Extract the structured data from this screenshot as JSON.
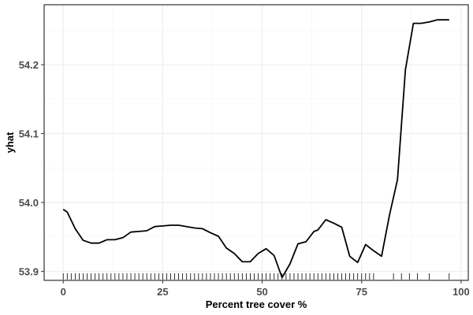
{
  "chart_data": {
    "type": "line",
    "title": "",
    "xlabel": "Percent tree cover %",
    "ylabel": "yhat",
    "xlim": [
      -4.8,
      101.8
    ],
    "ylim": [
      53.887,
      54.287
    ],
    "x_ticks": [
      0,
      25,
      50,
      75,
      100
    ],
    "x_tick_labels": [
      "0",
      "25",
      "50",
      "75",
      "100"
    ],
    "y_ticks": [
      53.9,
      54.0,
      54.1,
      54.2
    ],
    "y_tick_labels": [
      "53.9",
      "54.0",
      "54.1",
      "54.2"
    ],
    "grid": true,
    "series": [
      {
        "x": [
          0,
          1,
          3,
          5,
          7,
          9,
          11,
          13,
          15,
          17,
          19,
          21,
          23,
          25,
          27,
          29,
          31,
          33,
          35,
          37,
          39,
          41,
          43,
          45,
          47,
          49,
          51,
          53,
          55,
          57,
          59,
          61,
          63,
          64,
          66,
          68,
          70,
          72,
          74,
          76,
          78,
          80,
          82,
          84,
          86,
          88,
          90,
          92,
          94,
          96,
          97
        ],
        "y": [
          53.99,
          53.986,
          53.962,
          53.945,
          53.941,
          53.941,
          53.946,
          53.946,
          53.949,
          53.957,
          53.958,
          53.959,
          53.965,
          53.966,
          53.967,
          53.967,
          53.965,
          53.963,
          53.962,
          53.956,
          53.951,
          53.934,
          53.926,
          53.914,
          53.914,
          53.926,
          53.933,
          53.923,
          53.891,
          53.911,
          53.94,
          53.943,
          53.958,
          53.96,
          53.975,
          53.97,
          53.964,
          53.922,
          53.913,
          53.939,
          53.93,
          53.922,
          53.982,
          54.033,
          54.193,
          54.26,
          54.26,
          54.262,
          54.265,
          54.265,
          54.265
        ]
      }
    ],
    "rug_x": [
      0,
      1,
      2,
      3,
      4,
      5,
      6,
      7,
      8,
      9,
      10,
      11,
      12,
      13,
      14,
      15,
      16,
      17,
      18,
      19,
      20,
      21,
      22,
      23,
      24,
      25,
      26,
      27,
      28,
      29,
      30,
      31,
      32,
      33,
      34,
      35,
      36,
      37,
      38,
      39,
      40,
      41,
      42,
      43,
      44,
      45,
      46,
      47,
      48,
      49,
      50,
      51,
      52,
      53,
      54,
      55,
      56,
      57,
      58,
      59,
      60,
      61,
      62,
      63,
      64,
      65,
      66,
      67,
      68,
      69,
      70,
      71,
      72,
      73,
      74,
      75,
      76,
      77,
      78,
      83,
      85,
      87,
      89,
      92,
      97
    ]
  }
}
